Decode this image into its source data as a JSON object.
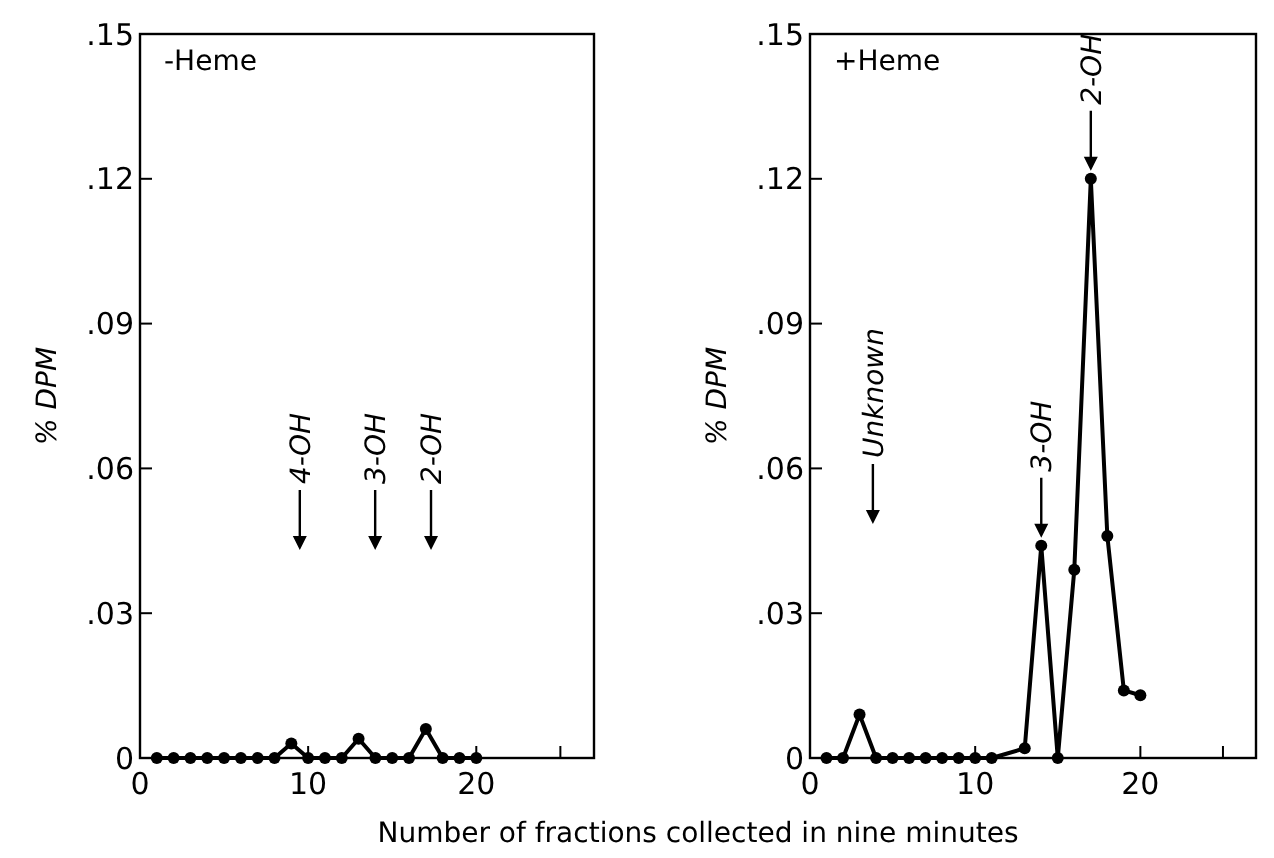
{
  "chart_data": [
    {
      "type": "line",
      "title": "-Heme",
      "ylabel": "% DPM",
      "xlabel": "Number of fractions collected in nine minutes",
      "marker": "circle",
      "line_style": "solid",
      "xlim": [
        0,
        27
      ],
      "xticks": [
        0,
        10,
        20,
        {
          "value": 25,
          "label": null
        }
      ],
      "ylim": [
        0,
        0.15
      ],
      "yticks": [
        {
          "value": 0,
          "label": "0"
        },
        {
          "value": 0.03,
          "label": ".03"
        },
        {
          "value": 0.06,
          "label": ".06"
        },
        {
          "value": 0.09,
          "label": ".09"
        },
        {
          "value": 0.12,
          "label": ".12"
        },
        {
          "value": 0.15,
          "label": ".15"
        }
      ],
      "series": [
        {
          "color": "#000000",
          "x": [
            1,
            2,
            3,
            4,
            5,
            6,
            7,
            8,
            9,
            10,
            11,
            12,
            13,
            14,
            15,
            16,
            17,
            18,
            19,
            20
          ],
          "values": [
            0,
            0,
            0,
            0,
            0,
            0,
            0,
            0,
            0.003,
            0,
            0,
            0,
            0.004,
            0,
            0,
            0,
            0.006,
            0,
            0,
            0
          ]
        }
      ],
      "annotations": [
        "4-OH",
        "3-OH",
        "2-OH"
      ]
    },
    {
      "type": "line",
      "title": "+Heme",
      "ylabel": "% DPM",
      "marker": "circle",
      "line_style": "solid",
      "xlim": [
        0,
        27
      ],
      "xticks": [
        0,
        10,
        20,
        {
          "value": 25,
          "label": null
        }
      ],
      "ylim": [
        0,
        0.15
      ],
      "yticks": [
        {
          "value": 0,
          "label": "0"
        },
        {
          "value": 0.03,
          "label": ".03"
        },
        {
          "value": 0.06,
          "label": ".06"
        },
        {
          "value": 0.09,
          "label": ".09"
        },
        {
          "value": 0.12,
          "label": ".12"
        },
        {
          "value": 0.15,
          "label": ".15"
        }
      ],
      "series": [
        {
          "color": "#000000",
          "x": [
            1,
            2,
            3,
            4,
            5,
            6,
            7,
            8,
            9,
            10,
            11,
            13,
            14,
            15,
            16,
            17,
            18,
            19,
            20
          ],
          "values": [
            0,
            0,
            0.009,
            0,
            0,
            0,
            0,
            0,
            0,
            0,
            0,
            0.002,
            0.044,
            0,
            0.039,
            0.12,
            0.046,
            0.014,
            0.013
          ]
        }
      ],
      "annotations": [
        "Unknown",
        {
          "text": "3-OH",
          "x": 14,
          "y": 0.044
        },
        {
          "text": "2-OH",
          "x": 17,
          "y": 0.12
        }
      ]
    }
  ]
}
